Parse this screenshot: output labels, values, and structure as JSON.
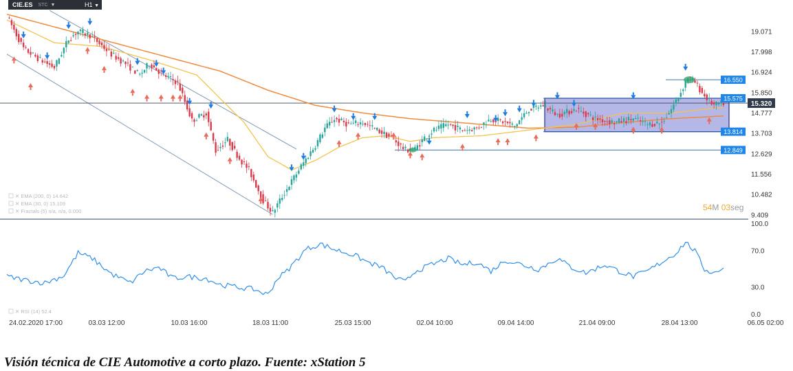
{
  "header": {
    "symbol": "CIE.ES",
    "sub": "STC",
    "timeframe": "H1"
  },
  "caption": "Visión técnica de CIE Automotive a corto plazo. Fuente: xStation 5",
  "timer": {
    "minutes": "54",
    "m": "M",
    "seconds": "03",
    "s": "seg"
  },
  "indicators": [
    "EMA (200, 0) 14.642",
    "EMA (30, 0) 15.109",
    "Fractals (5) n/a, n/a, 0.000"
  ],
  "rsi_label": "RSI (14) 52.4",
  "colors": {
    "price_up": "#26a69a",
    "price_down": "#d93a4a",
    "ema200": "#f08a3c",
    "ema30": "#f4c34e",
    "rsi": "#2f8ee8",
    "channel": "#8098b4",
    "box_fill": "#5a62c8",
    "label_bg": "#1f86e8",
    "last_price_bg": "#2f3b4a"
  },
  "chart_data": [
    {
      "type": "candlestick",
      "title": "CIE.ES H1",
      "y_ticks": [
        9.409,
        10.482,
        11.556,
        12.629,
        13.703,
        14.777,
        15.85,
        16.924,
        17.998,
        19.071
      ],
      "y_tick_labels": [
        "9.409",
        "10.482",
        "11.556",
        "12.629",
        "13.703",
        "14.777",
        "15.850",
        "16.924",
        "17.998",
        "19.071"
      ],
      "ylim": [
        9.35,
        20.1
      ],
      "x_ticks": [
        "24.02.2020 17:00",
        "03.03 12:00",
        "10.03 16:00",
        "18.03 11:00",
        "25.03 15:00",
        "02.04 10:00",
        "09.04 14:00",
        "21.04 09:00",
        "28.04 13:00",
        "06.05 02:00"
      ],
      "last_price": 15.32,
      "last_price_label": "15.320",
      "levels": [
        {
          "value": 16.55,
          "label": "16.550"
        },
        {
          "value": 15.575,
          "label": "15.575"
        },
        {
          "value": 13.814,
          "label": "13.814"
        },
        {
          "value": 12.849,
          "label": "12.849"
        }
      ],
      "consolidation_range": [
        13.814,
        15.575
      ],
      "close_path": [
        [
          0,
          19.9
        ],
        [
          7,
          18.2
        ],
        [
          14,
          17.6
        ],
        [
          20,
          17.2
        ],
        [
          26,
          18.7
        ],
        [
          30,
          19.1
        ],
        [
          35,
          18.9
        ],
        [
          44,
          17.9
        ],
        [
          50,
          17.4
        ],
        [
          56,
          16.8
        ],
        [
          60,
          17.4
        ],
        [
          66,
          16.8
        ],
        [
          72,
          16.4
        ],
        [
          78,
          14.4
        ],
        [
          84,
          14.8
        ],
        [
          88,
          12.8
        ],
        [
          93,
          13.4
        ],
        [
          98,
          12.4
        ],
        [
          102,
          11.8
        ],
        [
          108,
          10.2
        ],
        [
          112,
          9.55
        ],
        [
          116,
          10.4
        ],
        [
          120,
          11.2
        ],
        [
          124,
          12.0
        ],
        [
          130,
          13.1
        ],
        [
          134,
          14.0
        ],
        [
          138,
          14.5
        ],
        [
          144,
          14.2
        ],
        [
          150,
          14.3
        ],
        [
          156,
          13.9
        ],
        [
          162,
          13.5
        ],
        [
          168,
          12.85
        ],
        [
          172,
          12.9
        ],
        [
          176,
          13.5
        ],
        [
          180,
          13.9
        ],
        [
          186,
          14.2
        ],
        [
          192,
          13.9
        ],
        [
          198,
          14.0
        ],
        [
          204,
          14.5
        ],
        [
          210,
          14.3
        ],
        [
          214,
          14.1
        ],
        [
          220,
          15.0
        ],
        [
          226,
          15.2
        ],
        [
          232,
          14.7
        ],
        [
          240,
          15.0
        ],
        [
          248,
          14.5
        ],
        [
          256,
          14.3
        ],
        [
          264,
          14.5
        ],
        [
          270,
          14.2
        ],
        [
          276,
          14.3
        ],
        [
          280,
          15.0
        ],
        [
          284,
          15.9
        ],
        [
          287,
          16.7
        ],
        [
          290,
          16.4
        ],
        [
          294,
          15.7
        ],
        [
          298,
          15.2
        ],
        [
          302,
          15.32
        ]
      ],
      "ema200_path": [
        [
          0,
          20.0
        ],
        [
          30,
          19.0
        ],
        [
          60,
          18.0
        ],
        [
          90,
          17.0
        ],
        [
          110,
          16.0
        ],
        [
          130,
          15.2
        ],
        [
          150,
          14.8
        ],
        [
          170,
          14.5
        ],
        [
          190,
          14.3
        ],
        [
          210,
          14.1
        ],
        [
          220,
          14.0
        ],
        [
          240,
          14.05
        ],
        [
          260,
          14.3
        ],
        [
          280,
          14.5
        ],
        [
          302,
          14.642
        ]
      ],
      "ema30_path": [
        [
          0,
          19.7
        ],
        [
          20,
          18.5
        ],
        [
          40,
          18.3
        ],
        [
          60,
          17.6
        ],
        [
          80,
          16.8
        ],
        [
          100,
          14.3
        ],
        [
          110,
          12.5
        ],
        [
          120,
          11.8
        ],
        [
          130,
          12.3
        ],
        [
          140,
          13.0
        ],
        [
          150,
          13.5
        ],
        [
          160,
          13.6
        ],
        [
          170,
          13.3
        ],
        [
          180,
          13.5
        ],
        [
          200,
          13.6
        ],
        [
          220,
          13.9
        ],
        [
          240,
          14.2
        ],
        [
          260,
          14.8
        ],
        [
          280,
          14.8
        ],
        [
          302,
          15.109
        ]
      ],
      "channel_lines": [
        {
          "from": [
            0,
            17.9
          ],
          "to": [
            112,
            9.45
          ]
        },
        {
          "from": [
            18,
            20.2
          ],
          "to": [
            122,
            12.9
          ]
        }
      ],
      "fractals_up": [
        [
          7,
          18.8
        ],
        [
          17,
          17.7
        ],
        [
          26,
          19.3
        ],
        [
          35,
          19.5
        ],
        [
          55,
          17.4
        ],
        [
          63,
          17.3
        ],
        [
          66,
          16.9
        ],
        [
          77,
          15.3
        ],
        [
          86,
          15.1
        ],
        [
          120,
          11.8
        ],
        [
          125,
          12.4
        ],
        [
          138,
          14.9
        ],
        [
          146,
          14.5
        ],
        [
          155,
          14.5
        ],
        [
          178,
          13.2
        ],
        [
          194,
          14.6
        ],
        [
          206,
          14.4
        ],
        [
          210,
          14.7
        ],
        [
          216,
          14.9
        ],
        [
          222,
          15.2
        ],
        [
          232,
          15.6
        ],
        [
          239,
          15.2
        ],
        [
          264,
          15.6
        ],
        [
          286,
          17.1
        ]
      ],
      "fractals_down": [
        [
          3,
          17.7
        ],
        [
          10,
          16.3
        ],
        [
          34,
          18.2
        ],
        [
          41,
          17.2
        ],
        [
          53,
          16.0
        ],
        [
          59,
          15.7
        ],
        [
          65,
          15.7
        ],
        [
          70,
          15.7
        ],
        [
          73,
          15.7
        ],
        [
          84,
          13.7
        ],
        [
          94,
          12.4
        ],
        [
          107,
          10.3
        ],
        [
          140,
          13.3
        ],
        [
          148,
          13.7
        ],
        [
          163,
          13.7
        ],
        [
          170,
          12.7
        ],
        [
          175,
          12.6
        ],
        [
          192,
          13.1
        ],
        [
          207,
          13.4
        ],
        [
          211,
          13.4
        ],
        [
          223,
          13.6
        ],
        [
          240,
          14.2
        ],
        [
          248,
          14.2
        ],
        [
          264,
          14.0
        ],
        [
          276,
          14.0
        ],
        [
          296,
          14.5
        ]
      ]
    },
    {
      "type": "line",
      "title": "RSI (14)",
      "y_ticks": [
        0.0,
        30.0,
        70.0,
        100.0
      ],
      "y_tick_labels": [
        "0.0",
        "30.0",
        "70.0",
        "100.0"
      ],
      "ylim": [
        0,
        100
      ],
      "last_value": 52.4,
      "path": [
        [
          0,
          42
        ],
        [
          8,
          38
        ],
        [
          16,
          35
        ],
        [
          24,
          43
        ],
        [
          30,
          68
        ],
        [
          36,
          62
        ],
        [
          44,
          45
        ],
        [
          52,
          35
        ],
        [
          58,
          48
        ],
        [
          64,
          52
        ],
        [
          70,
          40
        ],
        [
          76,
          42
        ],
        [
          84,
          40
        ],
        [
          90,
          33
        ],
        [
          98,
          30
        ],
        [
          104,
          28
        ],
        [
          110,
          22
        ],
        [
          114,
          40
        ],
        [
          118,
          48
        ],
        [
          122,
          60
        ],
        [
          126,
          72
        ],
        [
          132,
          78
        ],
        [
          138,
          72
        ],
        [
          146,
          66
        ],
        [
          152,
          58
        ],
        [
          158,
          52
        ],
        [
          164,
          40
        ],
        [
          168,
          36
        ],
        [
          172,
          48
        ],
        [
          180,
          56
        ],
        [
          186,
          62
        ],
        [
          192,
          55
        ],
        [
          198,
          58
        ],
        [
          204,
          48
        ],
        [
          210,
          60
        ],
        [
          216,
          56
        ],
        [
          224,
          50
        ],
        [
          232,
          62
        ],
        [
          238,
          52
        ],
        [
          244,
          46
        ],
        [
          252,
          55
        ],
        [
          258,
          48
        ],
        [
          264,
          42
        ],
        [
          270,
          48
        ],
        [
          276,
          58
        ],
        [
          282,
          68
        ],
        [
          286,
          80
        ],
        [
          290,
          70
        ],
        [
          294,
          50
        ],
        [
          298,
          46
        ],
        [
          302,
          52.4
        ]
      ]
    }
  ]
}
